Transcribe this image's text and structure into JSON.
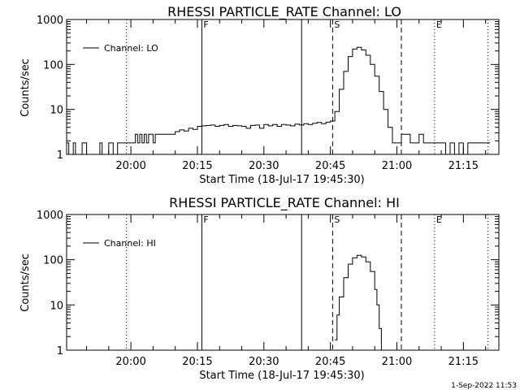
{
  "footer": {
    "timestamp": "1-Sep-2022 11:53"
  },
  "chart_data": [
    {
      "type": "line",
      "title": "RHESSI PARTICLE_RATE Channel: LO",
      "xlabel": "Start Time (18-Jul-17 19:45:30)",
      "ylabel": "Counts/sec",
      "yscale": "log",
      "xlim": [
        "19:45:30",
        "21:23:00"
      ],
      "ylim": [
        1,
        1000
      ],
      "x_ticks": [
        "20:00",
        "20:15",
        "20:30",
        "20:45",
        "21:00",
        "21:15"
      ],
      "y_ticks": [
        "1",
        "10",
        "100",
        "1000"
      ],
      "grid": false,
      "legend": {
        "position": "top-left",
        "entries": [
          "Channel: LO"
        ]
      },
      "markers": [
        {
          "label": "F",
          "time": "20:16:00",
          "style": "solid"
        },
        {
          "label": "",
          "time": "20:38:30",
          "style": "solid"
        },
        {
          "label": "S",
          "time": "20:45:30",
          "style": "dashed"
        },
        {
          "label": "",
          "time": "21:01:00",
          "style": "dashed"
        },
        {
          "label": "",
          "time": "19:59:00",
          "style": "dotted"
        },
        {
          "label": "E",
          "time": "21:08:30",
          "style": "dotted"
        },
        {
          "label": "",
          "time": "21:20:30",
          "style": "dotted"
        }
      ],
      "series": [
        {
          "name": "Channel: LO",
          "x": [
            "19:45:30",
            "19:46:00",
            "19:46:30",
            "19:47:00",
            "19:47:30",
            "19:48:00",
            "19:49:00",
            "19:50:00",
            "19:50:30",
            "19:51:00",
            "19:52:00",
            "19:53:00",
            "19:53:30",
            "19:54:00",
            "19:55:00",
            "19:56:00",
            "19:56:30",
            "19:57:00",
            "19:57:30",
            "19:58:00",
            "19:59:00",
            "20:00:00",
            "20:01:00",
            "20:01:30",
            "20:02:00",
            "20:02:30",
            "20:03:00",
            "20:03:30",
            "20:04:00",
            "20:04:30",
            "20:05:00",
            "20:05:30",
            "20:06:00",
            "20:07:00",
            "20:08:00",
            "20:09:00",
            "20:10:00",
            "20:11:00",
            "20:12:00",
            "20:13:00",
            "20:14:00",
            "20:15:00",
            "20:16:00",
            "20:17:00",
            "20:18:00",
            "20:19:00",
            "20:20:00",
            "20:21:00",
            "20:22:00",
            "20:23:00",
            "20:24:00",
            "20:25:00",
            "20:26:00",
            "20:27:00",
            "20:28:00",
            "20:29:00",
            "20:30:00",
            "20:31:00",
            "20:32:00",
            "20:33:00",
            "20:34:00",
            "20:35:00",
            "20:36:00",
            "20:37:00",
            "20:38:00",
            "20:39:00",
            "20:40:00",
            "20:41:00",
            "20:42:00",
            "20:43:00",
            "20:44:00",
            "20:45:00",
            "20:46:00",
            "20:47:00",
            "20:48:00",
            "20:49:00",
            "20:50:00",
            "20:51:00",
            "20:52:00",
            "20:53:00",
            "20:54:00",
            "20:55:00",
            "20:56:00",
            "20:57:00",
            "20:58:00",
            "20:59:00",
            "21:00:00",
            "21:01:00",
            "21:02:00",
            "21:03:00",
            "21:04:00",
            "21:05:00",
            "21:06:00",
            "21:07:00",
            "21:08:00",
            "21:09:00",
            "21:10:00",
            "21:11:00",
            "21:12:00",
            "21:13:00",
            "21:14:00",
            "21:15:00",
            "21:16:00",
            "21:17:00",
            "21:18:00",
            "21:19:00",
            "21:20:00",
            "21:21:00"
          ],
          "values": [
            1.8,
            1,
            1,
            1.8,
            1,
            1,
            1.8,
            1,
            1,
            1,
            1,
            1.8,
            1,
            1,
            1.8,
            1,
            1,
            1.8,
            1.8,
            1.8,
            1.8,
            1.8,
            2.8,
            1.8,
            2.8,
            1.8,
            2.8,
            1.8,
            2.8,
            2.8,
            1.8,
            2.8,
            2.8,
            2.8,
            2.8,
            2.8,
            3.2,
            3.5,
            3.3,
            3.8,
            3.6,
            4.2,
            4.3,
            4.4,
            4.5,
            4.2,
            4.4,
            4.6,
            4.2,
            4.4,
            4.3,
            4.2,
            3.8,
            4.4,
            4.5,
            3.8,
            4.6,
            4.3,
            4.6,
            4.2,
            4.6,
            4.5,
            4.3,
            4.7,
            4.5,
            4.8,
            4.6,
            4.9,
            5.1,
            4.8,
            5.2,
            5.5,
            9,
            28,
            70,
            150,
            220,
            240,
            210,
            160,
            100,
            55,
            25,
            10,
            4,
            1.8,
            1.8,
            2.8,
            2.8,
            1.8,
            1.8,
            2.8,
            1.8,
            1.8,
            1.8,
            1.8,
            1.8,
            1,
            1.8,
            1,
            1.8,
            1,
            1.8,
            1.8,
            1.8,
            1.8,
            1.8,
            1.8
          ]
        }
      ]
    },
    {
      "type": "line",
      "title": "RHESSI PARTICLE_RATE Channel: HI",
      "xlabel": "Start Time (18-Jul-17 19:45:30)",
      "ylabel": "Counts/sec",
      "yscale": "log",
      "xlim": [
        "19:45:30",
        "21:23:00"
      ],
      "ylim": [
        1,
        1000
      ],
      "x_ticks": [
        "20:00",
        "20:15",
        "20:30",
        "20:45",
        "21:00",
        "21:15"
      ],
      "y_ticks": [
        "1",
        "10",
        "100",
        "1000"
      ],
      "grid": false,
      "legend": {
        "position": "top-left",
        "entries": [
          "Channel: HI"
        ]
      },
      "markers": [
        {
          "label": "F",
          "time": "20:16:00",
          "style": "solid"
        },
        {
          "label": "",
          "time": "20:38:30",
          "style": "solid"
        },
        {
          "label": "S",
          "time": "20:45:30",
          "style": "dashed"
        },
        {
          "label": "",
          "time": "21:01:00",
          "style": "dashed"
        },
        {
          "label": "",
          "time": "19:59:00",
          "style": "dotted"
        },
        {
          "label": "E",
          "time": "21:08:30",
          "style": "dotted"
        },
        {
          "label": "",
          "time": "21:20:30",
          "style": "dotted"
        }
      ],
      "series": [
        {
          "name": "Channel: HI",
          "x": [
            "20:46:00",
            "20:46:30",
            "20:47:00",
            "20:48:00",
            "20:49:00",
            "20:50:00",
            "20:51:00",
            "20:52:00",
            "20:53:00",
            "20:54:00",
            "20:55:00",
            "20:55:30",
            "20:56:00",
            "20:56:30"
          ],
          "values": [
            1.7,
            6,
            15,
            40,
            80,
            110,
            125,
            115,
            90,
            55,
            22,
            10,
            3,
            1
          ]
        }
      ]
    }
  ]
}
